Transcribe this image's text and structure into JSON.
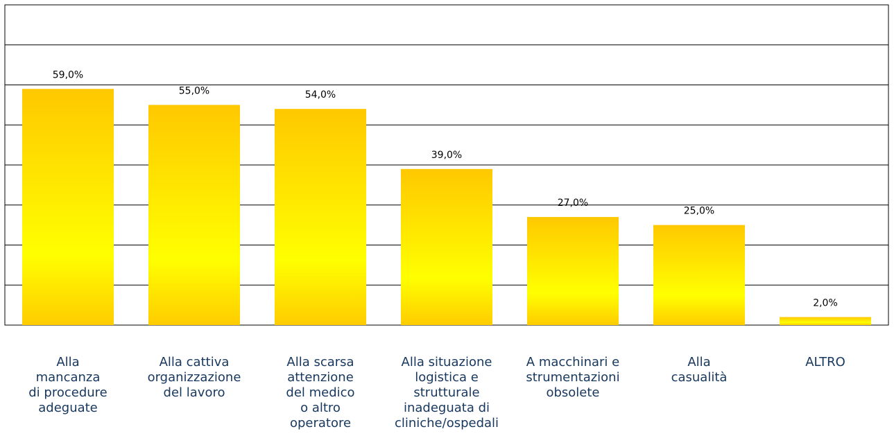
{
  "chart_data": {
    "type": "bar",
    "categories": [
      "Alla\nmancanza\ndi procedure\nadeguate",
      "Alla cattiva\norganizzazione\ndel lavoro",
      "Alla scarsa\nattenzione\ndel medico\no altro\noperatore",
      "Alla situazione\nlogistica e\nstrutturale\ninadeguata di\ncliniche/ospedali",
      "A macchinari e\nstrumentazioni\nobsolete",
      "Alla\ncasualità",
      "ALTRO"
    ],
    "values": [
      59,
      55,
      54,
      39,
      27,
      25,
      2
    ],
    "value_labels": [
      "59,0%",
      "55,0%",
      "54,0%",
      "39,0%",
      "27,0%",
      "25,0%",
      "2,0%"
    ],
    "color": "#ffcc00",
    "ylim": [
      0,
      80
    ],
    "yticks": [
      0,
      10,
      20,
      30,
      40,
      50,
      60,
      70,
      80
    ],
    "grid": true
  }
}
